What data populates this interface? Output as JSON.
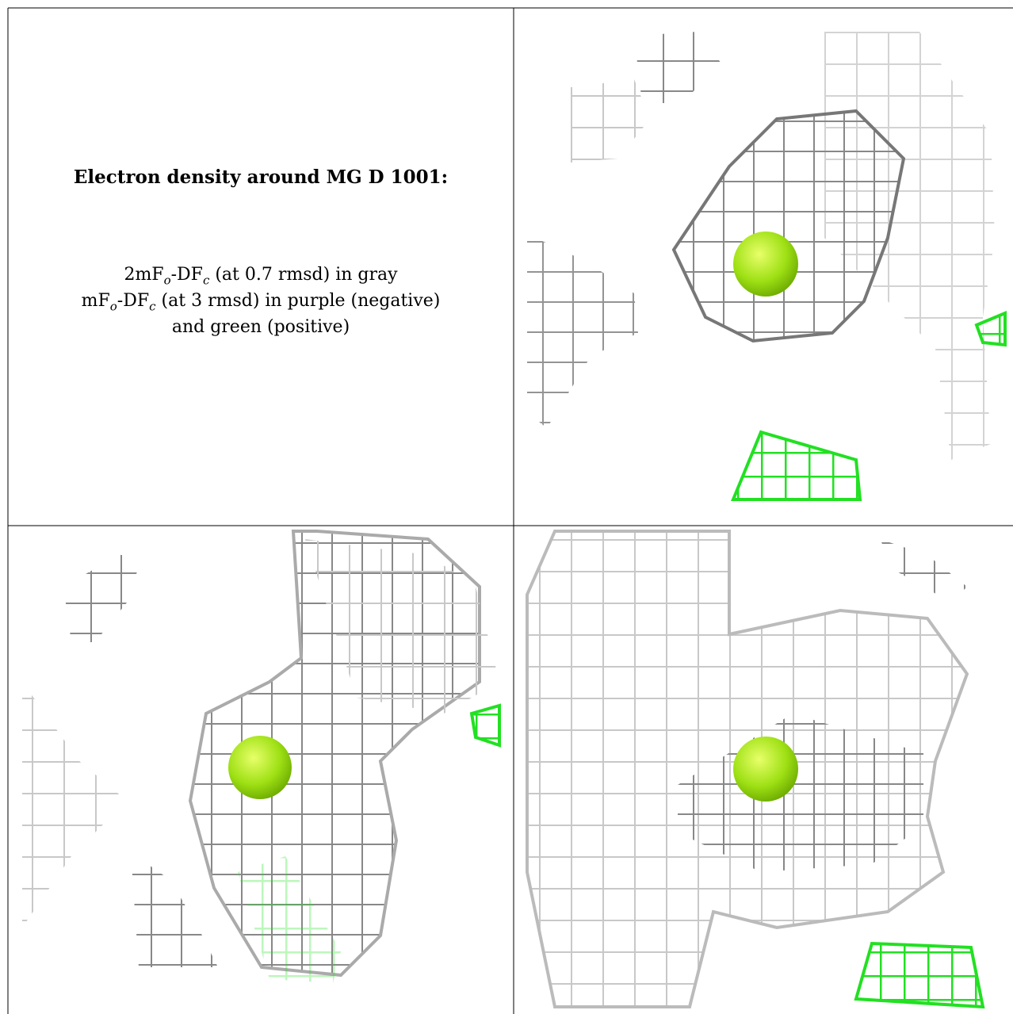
{
  "caption": {
    "title": "Electron density around MG D 1001:",
    "lines": [
      [
        "2mF",
        "o",
        "-DF",
        "c",
        " (at 0.7 rmsd) in gray"
      ],
      [
        "mF",
        "o",
        "-DF",
        "c",
        " (at 3 rmsd) in purple (negative)"
      ],
      [
        "and green (positive)"
      ]
    ]
  }
}
